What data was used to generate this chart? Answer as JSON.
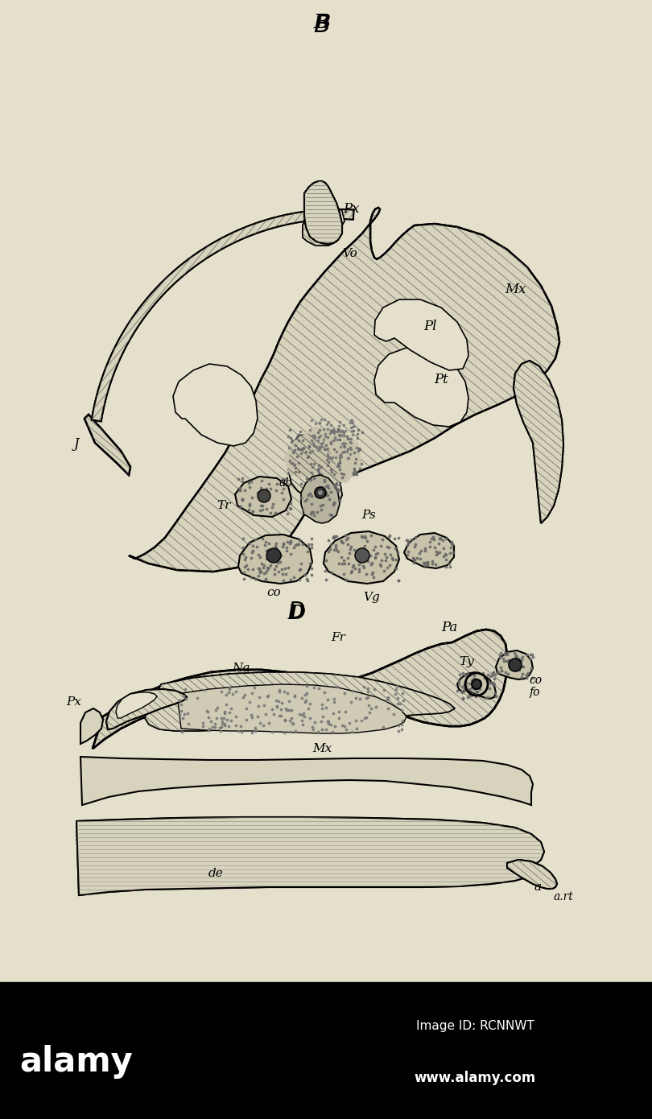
{
  "bg_color": "#e5e0cc",
  "black_bar_color": "#000000",
  "black_bar_height": 170,
  "alamy_text": "alamy",
  "alamy_color": "#ffffff",
  "image_id_text": "Image ID: RCNNWT",
  "website_text": "www.alamy.com",
  "fig_width": 8.1,
  "fig_height": 13.9,
  "dpi": 100,
  "hatch_color": "#555555",
  "stipple_color": "#777777",
  "bone_color": "#d8d3bc",
  "opening_color": "#e5e0cc",
  "dark_bone": "#b8b39e"
}
